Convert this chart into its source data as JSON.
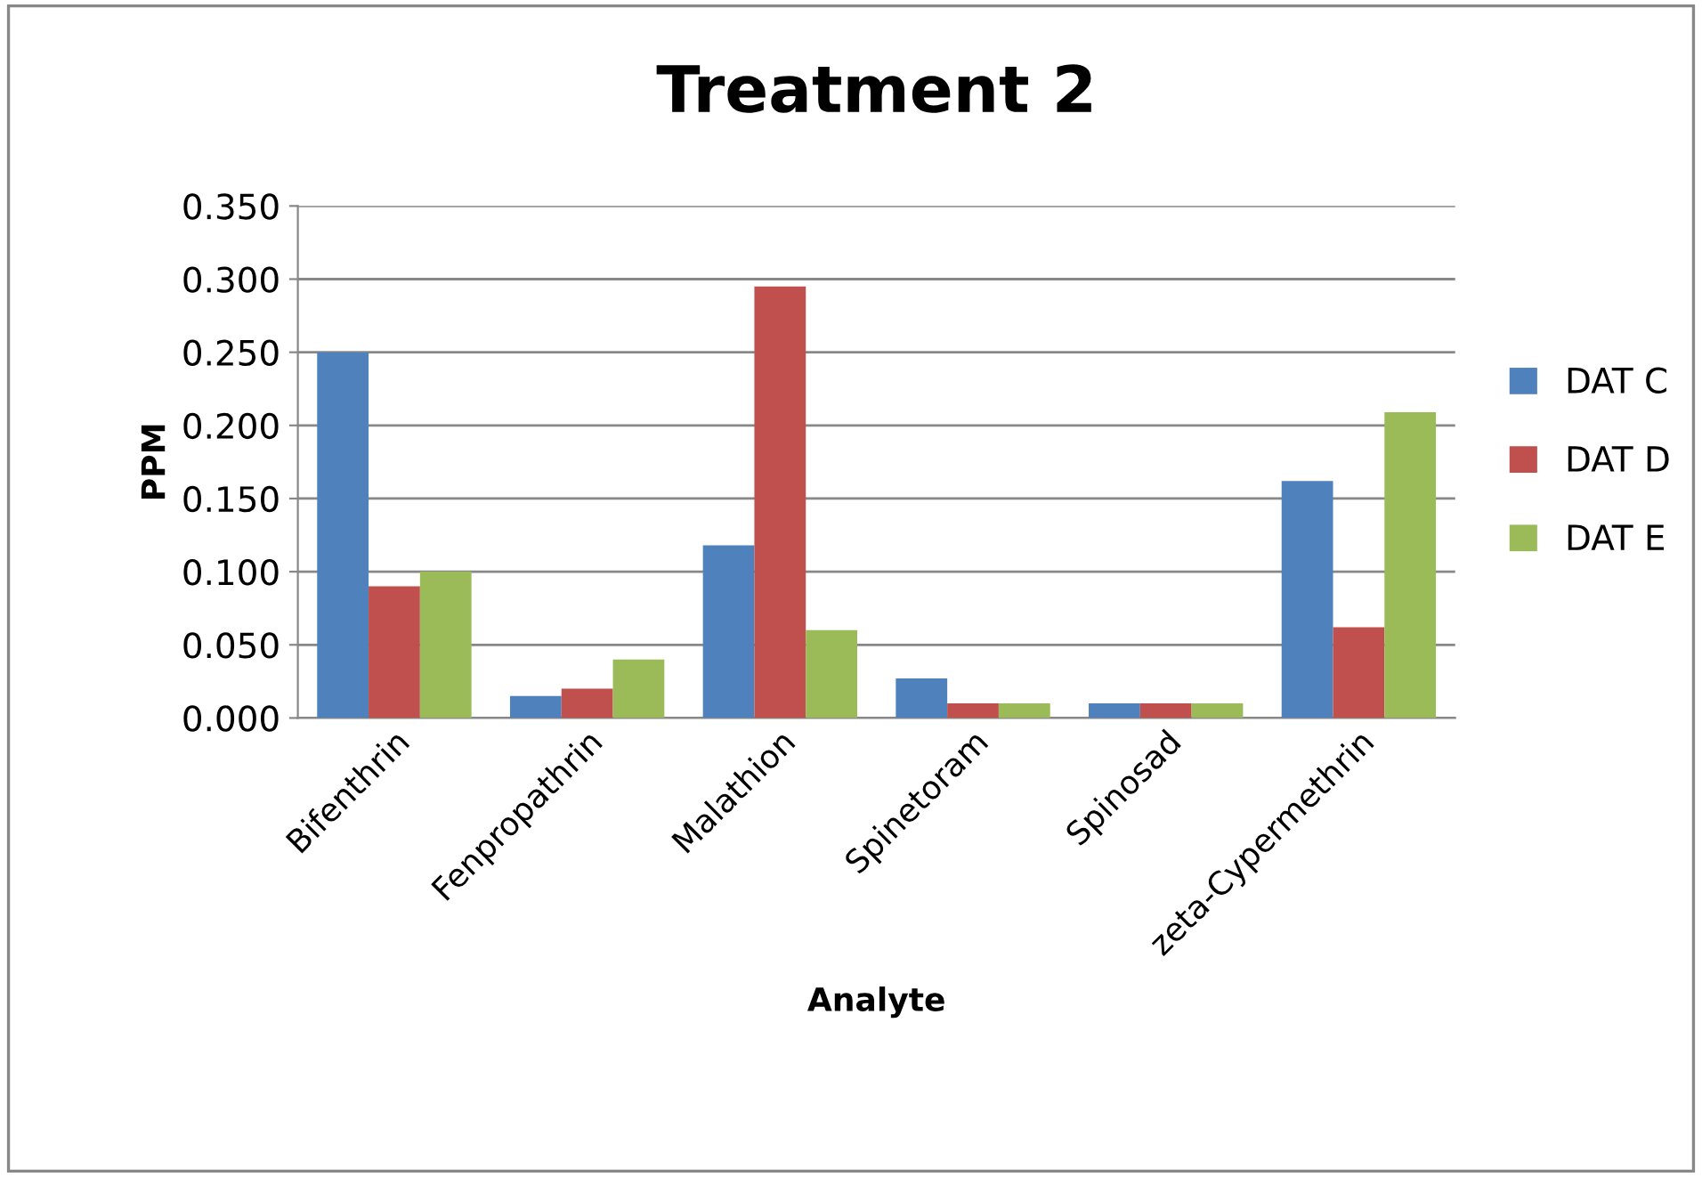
{
  "chart_data": {
    "type": "bar",
    "title": "Treatment 2",
    "xlabel": "Analyte",
    "ylabel": "PPM",
    "categories": [
      "Bifenthrin",
      "Fenpropathrin",
      "Malathion",
      "Spinetoram",
      "Spinosad",
      "zeta-Cypermethrin"
    ],
    "series": [
      {
        "name": "DAT C",
        "color": "#4f81bd",
        "values": [
          0.25,
          0.015,
          0.118,
          0.027,
          0.01,
          0.162
        ]
      },
      {
        "name": "DAT D",
        "color": "#c0504d",
        "values": [
          0.09,
          0.02,
          0.295,
          0.01,
          0.01,
          0.062
        ]
      },
      {
        "name": "DAT E",
        "color": "#9bbb59",
        "values": [
          0.1,
          0.04,
          0.06,
          0.01,
          0.01,
          0.209
        ]
      }
    ],
    "ylim": [
      0,
      0.35
    ],
    "yticks": [
      {
        "value": 0,
        "label": "0.000"
      },
      {
        "value": 0.05,
        "label": "0.050"
      },
      {
        "value": 0.1,
        "label": "0.100"
      },
      {
        "value": 0.15,
        "label": "0.150"
      },
      {
        "value": 0.2,
        "label": "0.200"
      },
      {
        "value": 0.25,
        "label": "0.250"
      },
      {
        "value": 0.3,
        "label": "0.300"
      },
      {
        "value": 0.35,
        "label": "0.350"
      }
    ],
    "grid": "y",
    "legend": "right"
  }
}
